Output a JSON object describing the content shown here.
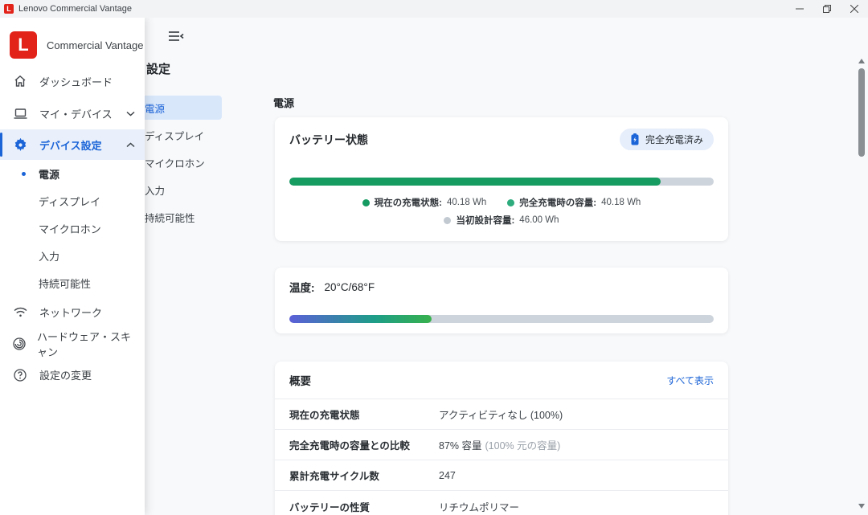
{
  "window": {
    "title": "Lenovo Commercial Vantage"
  },
  "brand": {
    "letter": "L",
    "name": "Commercial Vantage"
  },
  "sidebar": {
    "dashboard": "ダッシュボード",
    "my_device": "マイ・デバイス",
    "device_settings": "デバイス設定",
    "sub_items": {
      "power": "電源",
      "display": "ディスプレイ",
      "microphone": "マイクロホン",
      "input": "入力",
      "sustainability": "持続可能性"
    },
    "network": "ネットワーク",
    "hardware_scan": "ハードウェア・スキャン",
    "change_settings": "設定の変更"
  },
  "settings_nav": {
    "heading": "設定",
    "items": [
      {
        "label": "電源",
        "selected": true
      },
      {
        "label": "ディスプレイ",
        "selected": false
      },
      {
        "label": "マイクロホン",
        "selected": false
      },
      {
        "label": "入力",
        "selected": false
      },
      {
        "label": "持続可能性",
        "selected": false
      }
    ]
  },
  "main": {
    "section_title": "電源",
    "battery": {
      "title": "バッテリー状態",
      "badge_label": "完全充電済み",
      "charge_percent": 87.5,
      "legend": [
        {
          "label": "現在の充電状態:",
          "value": "40.18 Wh",
          "color": "#159b62"
        },
        {
          "label": "完全充電時の容量:",
          "value": "40.18 Wh",
          "color": "#2eac7e"
        },
        {
          "label": "当初設計容量:",
          "value": "46.00 Wh",
          "color": "#c2c9d1"
        }
      ]
    },
    "temperature": {
      "label": "温度:",
      "value": "20°C/68°F",
      "percent": 33.5
    },
    "summary": {
      "title": "概要",
      "show_all_label": "すべて表示",
      "rows": [
        {
          "label": "現在の充電状態",
          "value": "アクティビティなし (100%)"
        },
        {
          "label": "完全充電時の容量との比較",
          "value": "87% 容量",
          "value_muted": "(100% 元の容量)"
        },
        {
          "label": "累計充電サイクル数",
          "value": "247"
        },
        {
          "label": "バッテリーの性質",
          "value": "リチウムポリマー"
        }
      ]
    }
  },
  "colors": {
    "lenovo_red": "#e2231a",
    "accent_blue": "#1b64d8",
    "battery_green": "#169b60",
    "track_gray": "#ced4db",
    "temp_gradient_start": "#5b5fd8",
    "temp_gradient_end": "#37b14d",
    "badge_bg": "#e6eefb",
    "selected_nav_bg": "#d9e7fb"
  }
}
